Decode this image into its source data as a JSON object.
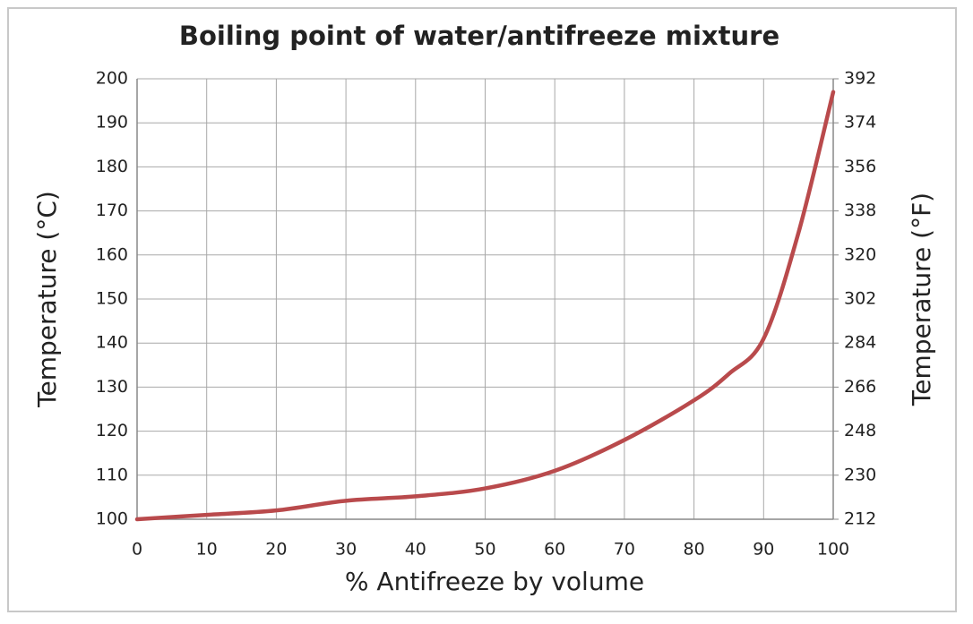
{
  "chart_data": {
    "type": "line",
    "title": "Boiling point of water/antifreeze mixture",
    "x_label": "% Antifreeze by volume",
    "y_label": "Temperature (°C)",
    "y2_label": "Temperature (°F)",
    "x": [
      0,
      10,
      20,
      30,
      40,
      50,
      60,
      70,
      80,
      85,
      90,
      95,
      100
    ],
    "series": [
      {
        "color": "#b94a4c",
        "values": [
          100,
          101,
          102,
          104.2,
          105.2,
          107,
          111,
          118,
          127,
          133,
          141,
          165,
          197
        ]
      }
    ],
    "xlim": [
      0,
      100
    ],
    "xticks": [
      0,
      10,
      20,
      30,
      40,
      50,
      60,
      70,
      80,
      90,
      100
    ],
    "ylim": [
      100,
      200
    ],
    "yticks": [
      100,
      110,
      120,
      130,
      140,
      150,
      160,
      170,
      180,
      190,
      200
    ],
    "y2lim": [
      212,
      392
    ],
    "y2ticks": [
      212,
      230,
      248,
      266,
      284,
      302,
      320,
      338,
      356,
      374,
      392
    ],
    "grid": true
  }
}
